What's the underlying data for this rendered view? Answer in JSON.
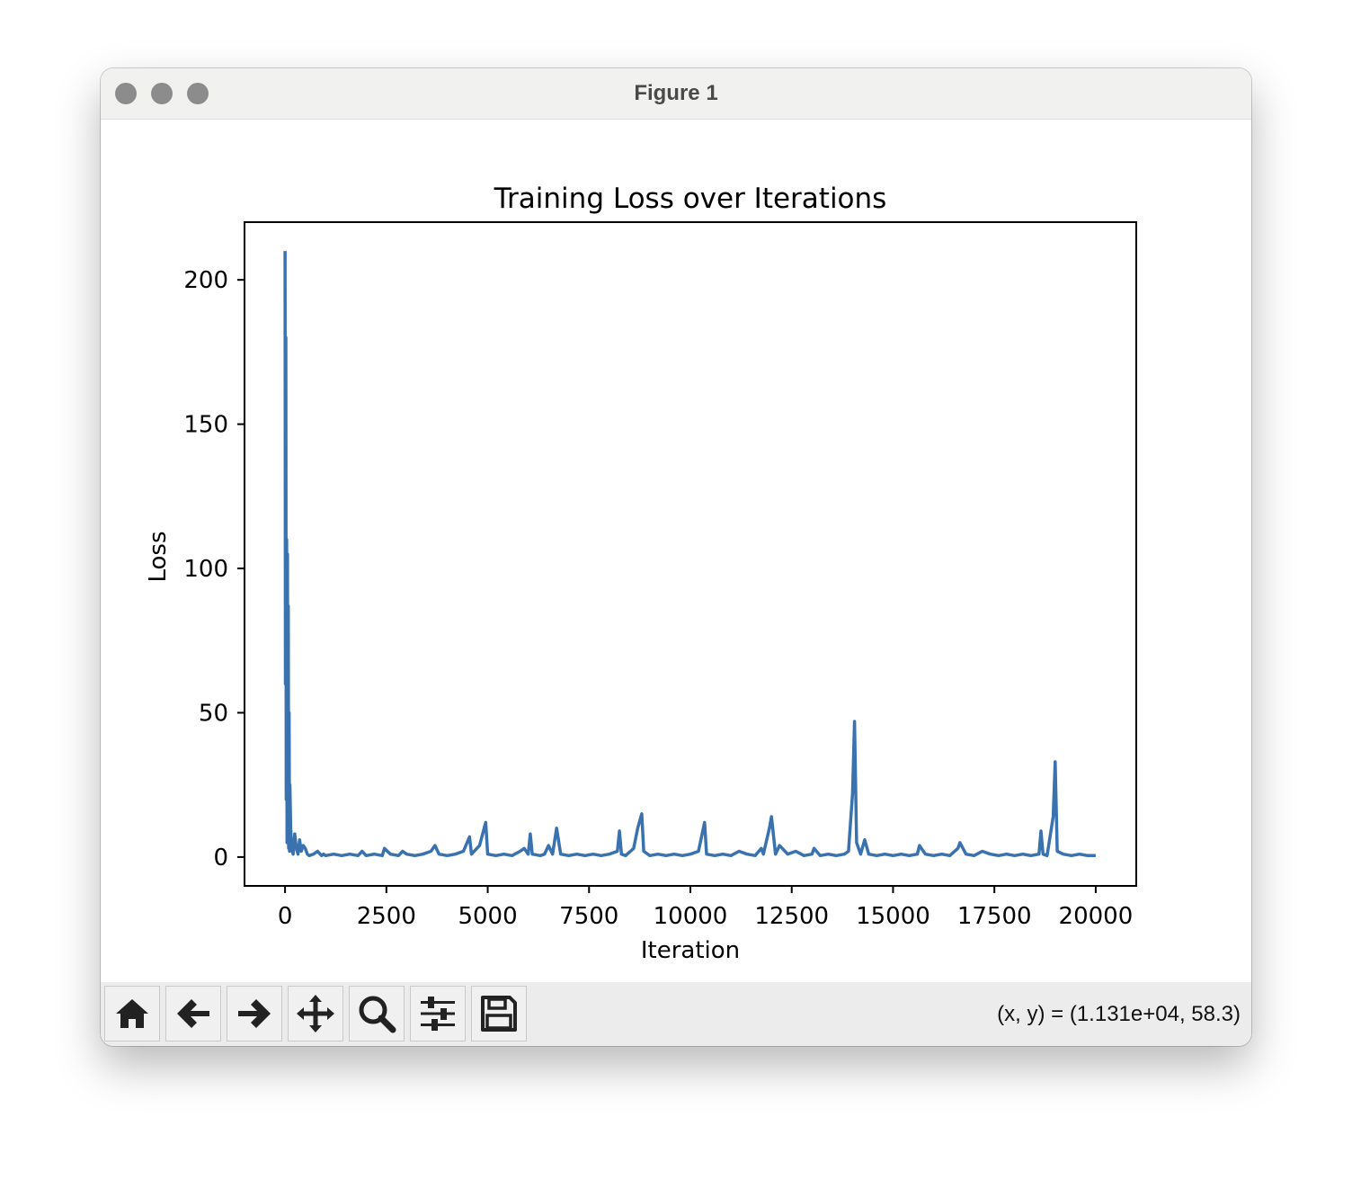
{
  "window": {
    "title": "Figure 1"
  },
  "toolbar": {
    "buttons": [
      {
        "name": "home-button",
        "icon": "home-icon"
      },
      {
        "name": "back-button",
        "icon": "arrow-left-icon"
      },
      {
        "name": "forward-button",
        "icon": "arrow-right-icon"
      },
      {
        "name": "pan-button",
        "icon": "move-icon"
      },
      {
        "name": "zoom-button",
        "icon": "magnifier-icon"
      },
      {
        "name": "configure-subplots-button",
        "icon": "sliders-icon"
      },
      {
        "name": "save-button",
        "icon": "floppy-disk-icon"
      }
    ],
    "coords": "(x, y) = (1.131e+04, 58.3)"
  },
  "chart_data": {
    "type": "line",
    "title": "Training Loss over Iterations",
    "xlabel": "Iteration",
    "ylabel": "Loss",
    "xlim": [
      -1000,
      21000
    ],
    "ylim": [
      -10,
      220
    ],
    "xticks": [
      0,
      2500,
      5000,
      7500,
      10000,
      12500,
      15000,
      17500,
      20000
    ],
    "yticks": [
      0,
      50,
      100,
      150,
      200
    ],
    "grid": false,
    "line_color": "#3a72b0",
    "series": [
      {
        "x": [
          0,
          10,
          20,
          30,
          40,
          50,
          60,
          70,
          80,
          90,
          100,
          110,
          120,
          140,
          160,
          180,
          200,
          240,
          280,
          320,
          360,
          400,
          450,
          500,
          550,
          600,
          700,
          800,
          900,
          950,
          1000,
          1200,
          1400,
          1600,
          1800,
          1900,
          2000,
          2200,
          2400,
          2450,
          2600,
          2800,
          2900,
          3000,
          3200,
          3400,
          3600,
          3700,
          3800,
          4000,
          4200,
          4400,
          4550,
          4600,
          4800,
          4950,
          5000,
          5200,
          5400,
          5600,
          5800,
          5900,
          6000,
          6050,
          6100,
          6300,
          6400,
          6500,
          6600,
          6700,
          6800,
          7000,
          7200,
          7400,
          7600,
          7800,
          8000,
          8200,
          8250,
          8300,
          8400,
          8600,
          8700,
          8800,
          8850,
          9000,
          9200,
          9400,
          9600,
          9800,
          10000,
          10200,
          10350,
          10400,
          10600,
          10800,
          11000,
          11200,
          11400,
          11600,
          11750,
          11800,
          11950,
          12000,
          12100,
          12200,
          12400,
          12600,
          12800,
          13000,
          13050,
          13200,
          13400,
          13600,
          13800,
          13900,
          14000,
          14050,
          14100,
          14200,
          14300,
          14400,
          14600,
          14800,
          15000,
          15200,
          15400,
          15600,
          15650,
          15800,
          16000,
          16200,
          16400,
          16600,
          16650,
          16800,
          17000,
          17200,
          17400,
          17600,
          17800,
          18000,
          18200,
          18400,
          18600,
          18650,
          18700,
          18800,
          18950,
          19000,
          19050,
          19200,
          19400,
          19600,
          19800,
          20000
        ],
        "y": [
          210,
          60,
          180,
          20,
          110,
          5,
          105,
          8,
          87,
          3,
          50,
          2,
          25,
          10,
          4,
          2,
          1,
          8,
          3,
          1,
          6,
          2,
          4,
          3,
          1,
          0.5,
          1,
          2,
          0.5,
          1,
          0.5,
          1,
          0.5,
          1,
          0.5,
          2,
          0.5,
          1,
          0.5,
          3,
          1,
          0.5,
          2,
          1,
          0.5,
          1,
          2,
          4,
          1,
          0.5,
          1,
          2,
          7,
          1,
          4,
          12,
          1,
          0.5,
          1,
          0.5,
          2,
          3,
          1,
          8,
          1,
          0.5,
          1,
          4,
          1,
          10,
          1,
          0.5,
          1,
          0.5,
          1,
          0.5,
          1,
          2,
          9,
          1,
          0.5,
          3,
          10,
          15,
          2,
          0.5,
          1,
          0.5,
          1,
          0.5,
          1,
          2,
          12,
          1,
          0.5,
          1,
          0.5,
          2,
          1,
          0.5,
          3,
          1,
          10,
          14,
          1,
          4,
          1,
          2,
          0.5,
          1,
          3,
          0.5,
          1,
          0.5,
          1,
          2,
          22,
          47,
          5,
          1,
          6,
          1,
          0.5,
          1,
          0.5,
          1,
          0.5,
          1,
          4,
          1,
          0.5,
          1,
          0.5,
          3,
          5,
          1,
          0.5,
          2,
          1,
          0.5,
          1,
          0.5,
          1,
          0.5,
          1,
          9,
          1,
          0.5,
          14,
          33,
          2,
          1,
          0.5,
          1,
          0.5,
          0.5
        ]
      }
    ]
  }
}
